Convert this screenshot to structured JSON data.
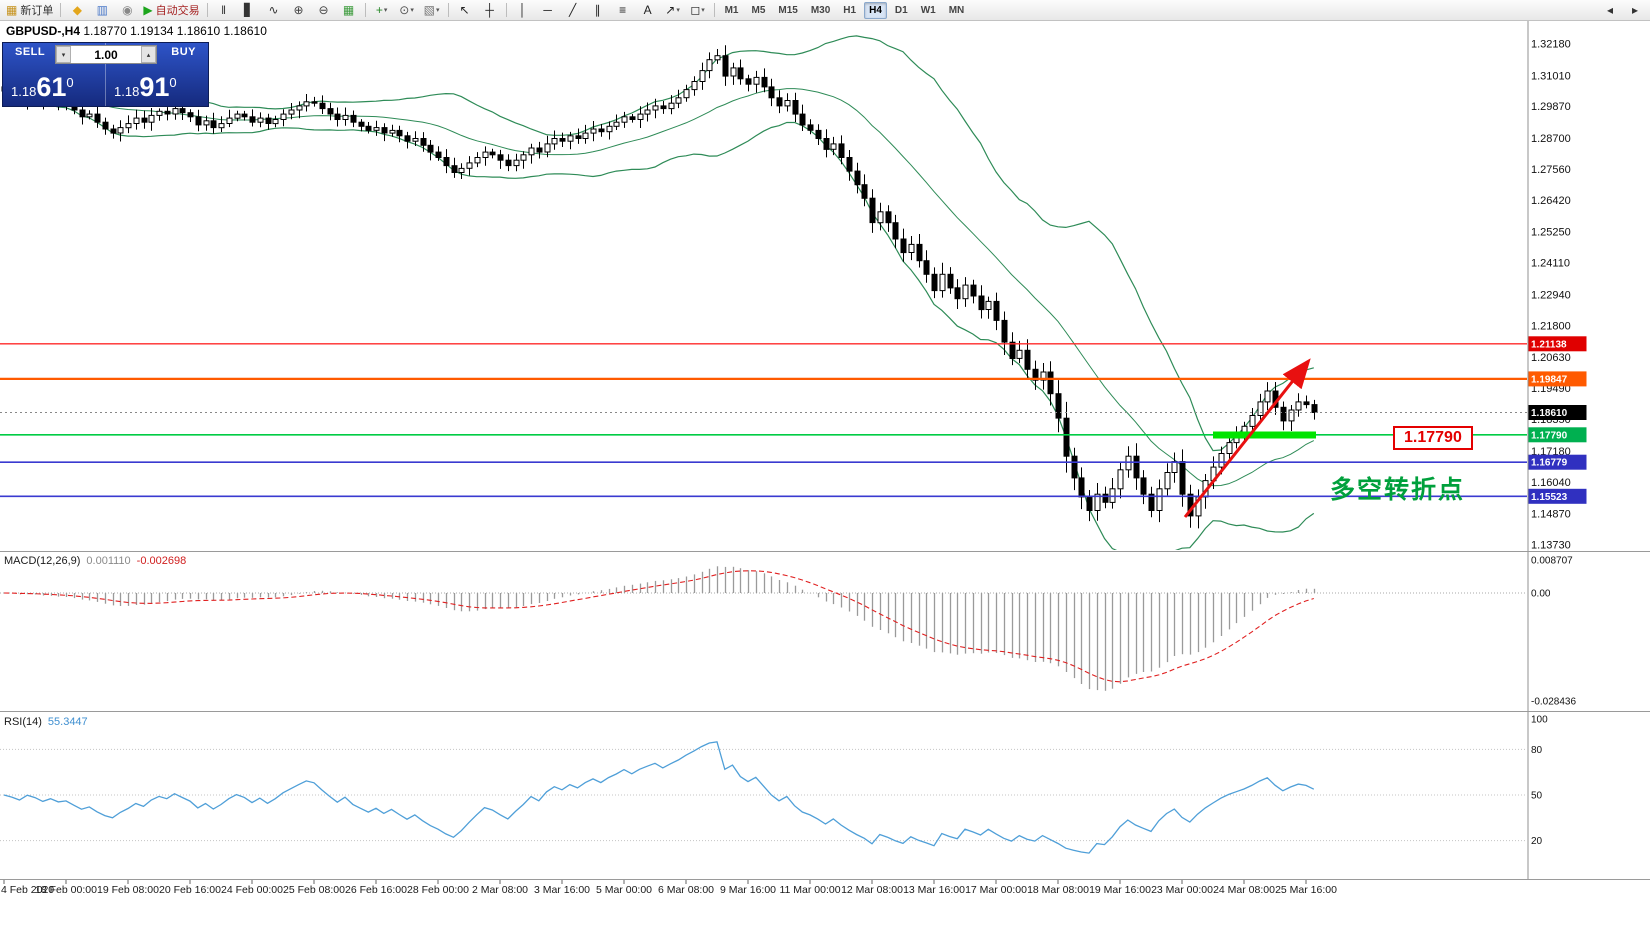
{
  "toolbar": {
    "items": [
      {
        "name": "new-order-button",
        "glyph": "▦",
        "glyph_color": "#c59018",
        "label": "新订单"
      },
      {
        "name": "sep"
      },
      {
        "name": "market-watch-icon",
        "glyph": "◆",
        "glyph_color": "#e3a61c"
      },
      {
        "name": "charts-window-icon",
        "glyph": "▥",
        "glyph_color": "#4a78c8"
      },
      {
        "name": "data-window-icon",
        "glyph": "◉",
        "glyph_color": "#888888"
      },
      {
        "name": "auto-trading-button",
        "glyph": "▶",
        "glyph_color": "#1ca51c",
        "label": "自动交易",
        "label_color": "#a52222"
      },
      {
        "name": "sep"
      },
      {
        "name": "bars-chart-icon",
        "glyph": "‖",
        "glyph_color": "#333333"
      },
      {
        "name": "candlestick-chart-icon",
        "glyph": "▋",
        "glyph_color": "#333333"
      },
      {
        "name": "line-chart-icon",
        "glyph": "∿",
        "glyph_color": "#333333"
      },
      {
        "name": "zoom-in-icon",
        "glyph": "⊕",
        "glyph_color": "#444444"
      },
      {
        "name": "zoom-out-icon",
        "glyph": "⊖",
        "glyph_color": "#444444"
      },
      {
        "name": "tile-windows-icon",
        "glyph": "▦",
        "glyph_color": "#3a9a3a"
      },
      {
        "name": "sep"
      },
      {
        "name": "indicators-icon",
        "glyph": "+",
        "glyph_color": "#2a8a2a",
        "caret": true
      },
      {
        "name": "periods-icon",
        "glyph": "⊙",
        "glyph_color": "#555555",
        "caret": true
      },
      {
        "name": "templates-icon",
        "glyph": "▧",
        "glyph_color": "#777777",
        "caret": true
      },
      {
        "name": "sep"
      },
      {
        "name": "cursor-icon",
        "glyph": "↖",
        "glyph_color": "#222222"
      },
      {
        "name": "crosshair-icon",
        "glyph": "┼",
        "glyph_color": "#222222"
      },
      {
        "name": "sep"
      },
      {
        "name": "vertical-line-icon",
        "glyph": "│",
        "glyph_color": "#222222"
      },
      {
        "name": "horizontal-line-icon",
        "glyph": "─",
        "glyph_color": "#222222"
      },
      {
        "name": "trendline-icon",
        "glyph": "╱",
        "glyph_color": "#222222"
      },
      {
        "name": "channel-icon",
        "glyph": "∥",
        "glyph_color": "#222222"
      },
      {
        "name": "fibonacci-icon",
        "glyph": "≡",
        "glyph_color": "#222222"
      },
      {
        "name": "text-icon",
        "glyph": "A",
        "glyph_color": "#222222"
      },
      {
        "name": "arrows-icon",
        "glyph": "↗",
        "glyph_color": "#222222",
        "caret": true
      },
      {
        "name": "shapes-icon",
        "glyph": "◻",
        "glyph_color": "#222222",
        "caret": true
      },
      {
        "name": "sep"
      }
    ],
    "timeframes": [
      {
        "label": "M1"
      },
      {
        "label": "M5"
      },
      {
        "label": "M15"
      },
      {
        "label": "M30"
      },
      {
        "label": "H1"
      },
      {
        "label": "H4",
        "active": true
      },
      {
        "label": "D1"
      },
      {
        "label": "W1"
      },
      {
        "label": "MN"
      }
    ],
    "right_items": [
      {
        "name": "scroll-left-icon",
        "glyph": "◂"
      },
      {
        "name": "scroll-right-icon",
        "glyph": "▸"
      }
    ]
  },
  "chart": {
    "title_symbol": "GBPUSD-,H4",
    "title_ohlc": "1.18770 1.19134 1.18610 1.18610"
  },
  "one_click": {
    "sell_label": "SELL",
    "buy_label": "BUY",
    "volume": "1.00",
    "sell_price": {
      "prefix": "1.18",
      "big": "61",
      "sup": "0"
    },
    "buy_price": {
      "prefix": "1.18",
      "big": "91",
      "sup": "0"
    }
  },
  "annotations": {
    "price_label": "1.17790",
    "turning_point_text": "多空转折点"
  },
  "macd": {
    "name": "MACD(12,26,9)",
    "value": "0.001110",
    "signal": "-0.002698",
    "axis": [
      {
        "v": 0.008707,
        "label": "0.008707"
      },
      {
        "v": 0,
        "label": "0.00"
      },
      {
        "v": -0.028436,
        "label": "-0.028436"
      }
    ]
  },
  "rsi": {
    "name": "RSI(14)",
    "value": "55.3447",
    "levels": [
      {
        "v": 100,
        "label": "100"
      },
      {
        "v": 80,
        "label": "80"
      },
      {
        "v": 50,
        "label": "50"
      },
      {
        "v": 20,
        "label": "20"
      }
    ],
    "line_levels": [
      80,
      50,
      20
    ]
  },
  "chart_data": {
    "type": "candlestick",
    "symbol": "GBPUSD",
    "timeframe": "H4",
    "title": "GBPUSD-,H4 1.18770 1.19134 1.18610 1.18610",
    "ylim": [
      1.1373,
      1.3218
    ],
    "indicators": {
      "bollinger": {
        "period": 20,
        "deviation": 2
      },
      "macd": {
        "fast": 12,
        "slow": 26,
        "signal": 9,
        "last_value": 0.00111,
        "last_signal": -0.002698,
        "range": [
          -0.028436,
          0.008707
        ]
      },
      "rsi": {
        "period": 14,
        "last_value": 55.3447,
        "range": [
          0,
          100
        ]
      }
    },
    "closes": [
      1.3045,
      1.303,
      1.301,
      1.304,
      1.3025,
      1.3,
      1.3015,
      1.2995,
      1.3,
      1.2975,
      1.295,
      1.296,
      1.293,
      1.2905,
      1.289,
      1.291,
      1.2925,
      1.2945,
      1.293,
      1.2955,
      1.297,
      1.296,
      1.298,
      1.2965,
      1.295,
      1.292,
      1.2935,
      1.291,
      1.2925,
      1.2945,
      1.296,
      1.295,
      1.293,
      1.2945,
      1.2925,
      1.294,
      1.296,
      1.2975,
      1.299,
      1.3005,
      1.3,
      1.298,
      1.296,
      1.294,
      1.2955,
      1.293,
      1.2915,
      1.29,
      1.291,
      1.289,
      1.29,
      1.288,
      1.286,
      1.287,
      1.2845,
      1.282,
      1.28,
      1.277,
      1.2745,
      1.276,
      1.278,
      1.28,
      1.282,
      1.281,
      1.279,
      1.277,
      1.279,
      1.281,
      1.2835,
      1.282,
      1.285,
      1.287,
      1.286,
      1.288,
      1.287,
      1.289,
      1.2905,
      1.2895,
      1.2915,
      1.293,
      1.295,
      1.294,
      1.296,
      1.2975,
      1.299,
      1.298,
      1.3,
      1.302,
      1.305,
      1.308,
      1.312,
      1.316,
      1.3175,
      1.31,
      1.313,
      1.309,
      1.307,
      1.3095,
      1.306,
      1.302,
      1.299,
      1.301,
      1.296,
      1.292,
      1.29,
      1.287,
      1.283,
      1.285,
      1.28,
      1.275,
      1.27,
      1.265,
      1.256,
      1.26,
      1.256,
      1.25,
      1.245,
      1.248,
      1.242,
      1.237,
      1.231,
      1.237,
      1.232,
      1.228,
      1.233,
      1.229,
      1.224,
      1.227,
      1.22,
      1.212,
      1.206,
      1.209,
      1.202,
      1.198,
      1.201,
      1.193,
      1.184,
      1.17,
      1.162,
      1.155,
      1.15,
      1.156,
      1.153,
      1.158,
      1.165,
      1.17,
      1.162,
      1.156,
      1.15,
      1.158,
      1.164,
      1.168,
      1.156,
      1.148,
      1.155,
      1.161,
      1.166,
      1.171,
      1.175,
      1.178,
      1.181,
      1.185,
      1.19,
      1.194,
      1.188,
      1.183,
      1.187,
      1.19,
      1.189,
      1.1861
    ],
    "price_ticks": [
      {
        "v": 1.3218,
        "label": "1.32180"
      },
      {
        "v": 1.3101,
        "label": "1.31010"
      },
      {
        "v": 1.2987,
        "label": "1.29870"
      },
      {
        "v": 1.287,
        "label": "1.28700"
      },
      {
        "v": 1.2756,
        "label": "1.27560"
      },
      {
        "v": 1.2642,
        "label": "1.26420"
      },
      {
        "v": 1.2525,
        "label": "1.25250"
      },
      {
        "v": 1.2411,
        "label": "1.24110"
      },
      {
        "v": 1.2294,
        "label": "1.22940"
      },
      {
        "v": 1.218,
        "label": "1.21800"
      },
      {
        "v": 1.2063,
        "label": "1.20630"
      },
      {
        "v": 1.1949,
        "label": "1.19490"
      },
      {
        "v": 1.1835,
        "label": "1.18350"
      },
      {
        "v": 1.1718,
        "label": "1.17180"
      },
      {
        "v": 1.1604,
        "label": "1.16040"
      },
      {
        "v": 1.1487,
        "label": "1.14870"
      },
      {
        "v": 1.1373,
        "label": "1.13730"
      }
    ],
    "time_labels": [
      "4 Feb 2020",
      "18 Feb 00:00",
      "19 Feb 08:00",
      "20 Feb 16:00",
      "24 Feb 00:00",
      "25 Feb 08:00",
      "26 Feb 16:00",
      "28 Feb 00:00",
      "2 Mar 08:00",
      "3 Mar 16:00",
      "5 Mar 00:00",
      "6 Mar 08:00",
      "9 Mar 16:00",
      "11 Mar 00:00",
      "12 Mar 08:00",
      "13 Mar 16:00",
      "17 Mar 00:00",
      "18 Mar 08:00",
      "19 Mar 16:00",
      "23 Mar 00:00",
      "24 Mar 08:00",
      "25 Mar 16:00"
    ],
    "levels": [
      {
        "price": 1.21138,
        "label": "1.21138",
        "tag_color": "#e00000",
        "line_color": "#ff2a2a",
        "width": 1.4
      },
      {
        "price": 1.19847,
        "label": "1.19847",
        "tag_color": "#ff5a00",
        "line_color": "#ff5a00",
        "width": 2.2
      },
      {
        "price": 1.1779,
        "label": "1.17790",
        "tag_color": "#00b050",
        "line_color": "#00cc44",
        "width": 1.6
      },
      {
        "price": 1.16779,
        "label": "1.16779",
        "tag_color": "#3030c0",
        "line_color": "#3a3ad0",
        "width": 1.6
      },
      {
        "price": 1.15523,
        "label": "1.15523",
        "tag_color": "#3030c0",
        "line_color": "#3a3ad0",
        "width": 1.6
      }
    ],
    "current_price": {
      "value": 1.1861,
      "label": "1.18610",
      "tag_color": "#000000"
    },
    "colors": {
      "bull": "#ffffff",
      "bear": "#000000",
      "band": "#2E8B57",
      "macd_hist": "#9a9a9a",
      "macd_signal": "#e02020",
      "rsi_line": "#4f9fd8",
      "arrow": "#e81010",
      "segment": "#00e400"
    }
  }
}
